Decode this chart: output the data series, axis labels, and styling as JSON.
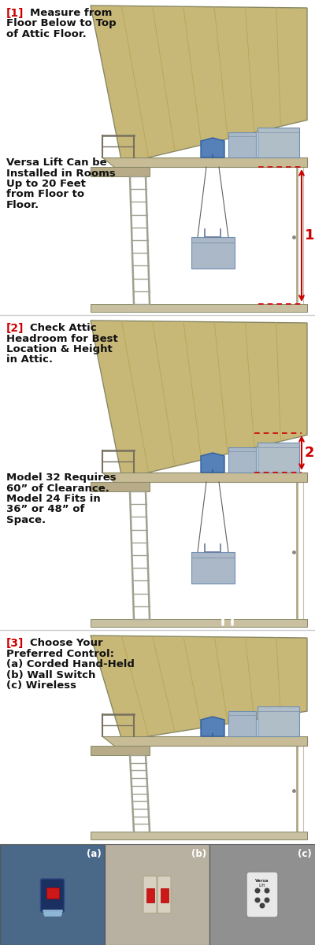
{
  "bg_color": "#ffffff",
  "panels": [
    {
      "step_num": "1",
      "step_text_line1": "Measure from",
      "step_text_rest": "Floor Below to Top\nof Attic Floor.",
      "body_text": "Versa Lift Can be\nInstalled in Rooms\nUp to 20 Feet\nfrom Floor to\nFloor.",
      "arrow_label": "1",
      "show_floor_arrow": true,
      "show_attic_arrow": false,
      "show_hanging_box": true,
      "show_up_arrows": false
    },
    {
      "step_num": "2",
      "step_text_line1": "Check Attic",
      "step_text_rest": "Headroom for Best\nLocation & Height\nin Attic.",
      "body_text": "Model 32 Requires\n60” of Clearance.\nModel 24 Fits in\n36” or 48” of\nSpace.",
      "arrow_label": "2",
      "show_floor_arrow": false,
      "show_attic_arrow": true,
      "show_hanging_box": true,
      "show_up_arrows": true
    },
    {
      "step_num": "3",
      "step_text_line1": "Choose Your",
      "step_text_rest": "Preferred Control:\n(a) Corded Hand-Held\n(b) Wall Switch\n(c) Wireless",
      "body_text": "",
      "arrow_label": "",
      "show_floor_arrow": false,
      "show_attic_arrow": false,
      "show_hanging_box": false,
      "show_up_arrows": false
    }
  ],
  "photo_labels": [
    "(a)",
    "(b)",
    "(c)"
  ],
  "photo_bg_colors": [
    "#4a6888",
    "#b8b0a0",
    "#909090"
  ],
  "roof_color": "#c8b878",
  "roof_stripe_color": "#b8a858",
  "floor_color": "#c0b888",
  "attic_floor_color": "#c8bc96",
  "box_color": "#a8b8c8",
  "box_color2": "#b0bec8",
  "lift_color": "#7090c0",
  "ladder_color": "#a0a090",
  "wall_color": "#c8c0b0",
  "arrow_red": "#cc0000",
  "text_color": "#111111",
  "bracket_red": "#cc0000",
  "divider_color": "#cccccc"
}
